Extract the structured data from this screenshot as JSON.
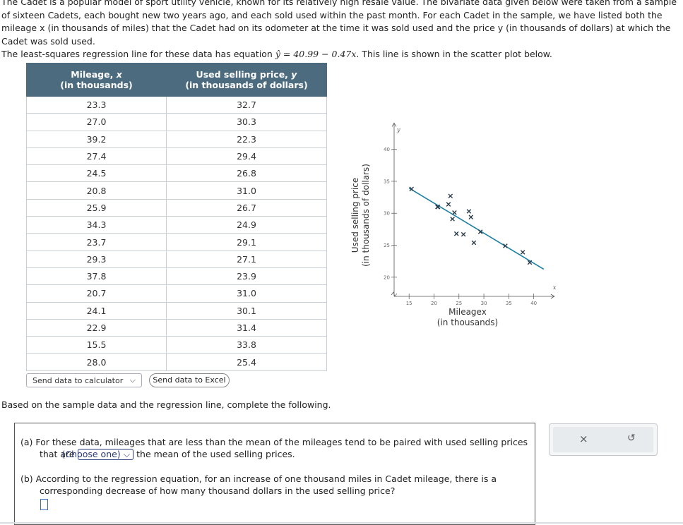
{
  "intro": {
    "p1": "The Cadet is a popular model of sport utility vehicle, known for its relatively high resale value. The bivariate data given below were taken from a sample of sixteen Cadets, each bought new two years ago, and each sold used within the past month. For each Cadet in the sample, we have listed both the mileage x (in thousands of miles) that the Cadet had on its odometer at the time it was sold used and the price y (in thousands of dollars) at which the Cadet was sold used.",
    "p2_pre": "The least-squares regression line for these data has equation ",
    "equation": "ŷ = 40.99 − 0.47x",
    "p2_post": ". This line is shown in the scatter plot below."
  },
  "table": {
    "col1_title": "Mileage, ",
    "col1_var": "x",
    "col1_sub": "(in thousands)",
    "col2_title": "Used selling price, ",
    "col2_var": "y",
    "col2_sub": "(in thousands of dollars)",
    "rows": [
      [
        "23.3",
        "32.7"
      ],
      [
        "27.0",
        "30.3"
      ],
      [
        "39.2",
        "22.3"
      ],
      [
        "27.4",
        "29.4"
      ],
      [
        "24.5",
        "26.8"
      ],
      [
        "20.8",
        "31.0"
      ],
      [
        "25.9",
        "26.7"
      ],
      [
        "34.3",
        "24.9"
      ],
      [
        "23.7",
        "29.1"
      ],
      [
        "29.3",
        "27.1"
      ],
      [
        "37.8",
        "23.9"
      ],
      [
        "20.7",
        "31.0"
      ],
      [
        "24.1",
        "30.1"
      ],
      [
        "22.9",
        "31.4"
      ],
      [
        "15.5",
        "33.8"
      ],
      [
        "28.0",
        "25.4"
      ]
    ]
  },
  "buttons": {
    "calc_label": "Send data to calculator",
    "excel_label": "Send data to Excel"
  },
  "instruction": "Based on the sample data and the regression line, complete the following.",
  "questions": {
    "a_pre": "(a)  For these data, mileages that are less than the mean of the mileages tend to be paired with used selling prices that are ",
    "a_dropdown": "(Choose one)",
    "a_post": " the mean of the used selling prices.",
    "b": "(b)  According to the regression equation, for an increase of one thousand miles in Cadet mileage, there is a corresponding decrease of how many thousand dollars in the used selling price?"
  },
  "side_panel": {
    "clear_icon": "×",
    "undo_icon": "↺"
  },
  "chart_data": {
    "type": "scatter",
    "title": "",
    "xlabel": "Mileage x (in thousands)",
    "ylabel": "Used selling price (in thousands of dollars)",
    "x_axis_symbol": "x",
    "y_axis_symbol": "y",
    "xlim": [
      12,
      43
    ],
    "ylim": [
      17,
      43
    ],
    "xticks": [
      15,
      20,
      25,
      30,
      35,
      40
    ],
    "yticks": [
      20,
      25,
      30,
      35,
      40
    ],
    "x": [
      23.3,
      27.0,
      39.2,
      27.4,
      24.5,
      20.8,
      25.9,
      34.3,
      23.7,
      29.3,
      37.8,
      20.7,
      24.1,
      22.9,
      15.5,
      28.0
    ],
    "y": [
      32.7,
      30.3,
      22.3,
      29.4,
      26.8,
      31.0,
      26.7,
      24.9,
      29.1,
      27.1,
      23.9,
      31.0,
      30.1,
      31.4,
      33.8,
      25.4
    ],
    "regression": {
      "intercept": 40.99,
      "slope": -0.47,
      "x_range": [
        15,
        40
      ]
    },
    "colors": {
      "points": "#1d7fa3",
      "line": "#1d7fa3",
      "axis": "#555555"
    }
  }
}
